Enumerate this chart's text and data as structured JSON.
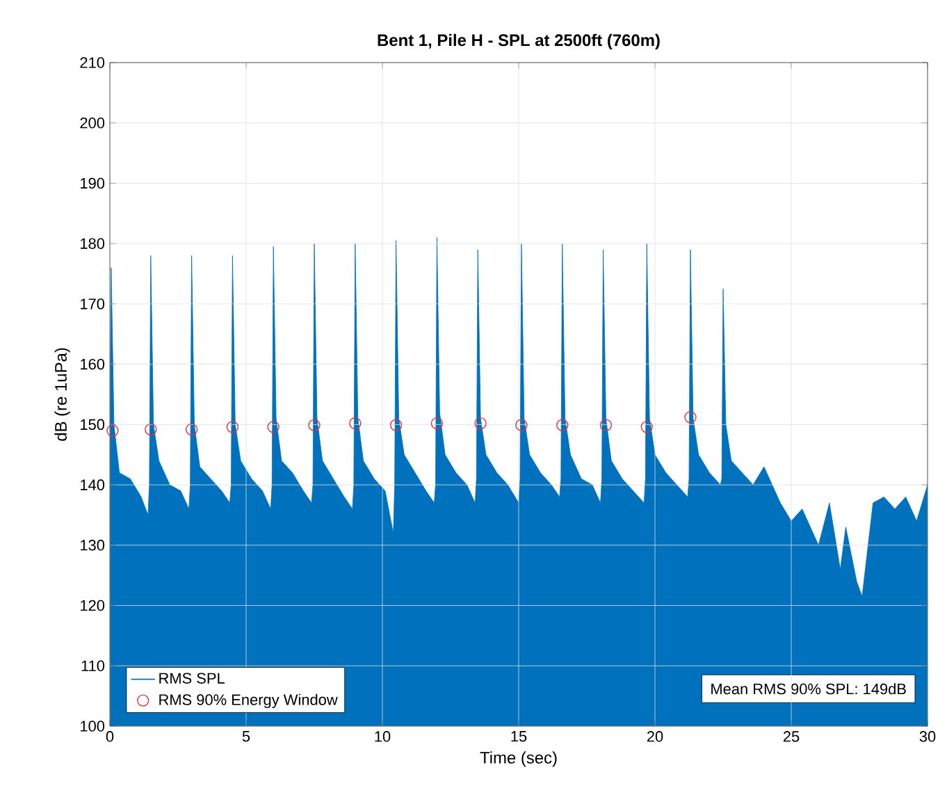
{
  "chart_data": {
    "type": "area",
    "title": "Bent 1, Pile H - SPL at 2500ft (760m)",
    "xlabel": "Time (sec)",
    "ylabel": "dB (re 1uPa)",
    "xlim": [
      0,
      30
    ],
    "ylim": [
      100,
      210
    ],
    "xticks": [
      0,
      5,
      10,
      15,
      20,
      25,
      30
    ],
    "yticks": [
      100,
      110,
      120,
      130,
      140,
      150,
      160,
      170,
      180,
      190,
      200,
      210
    ],
    "grid": true,
    "legend": "bottom left",
    "annotations": [
      "Mean RMS 90% SPL: 149dB"
    ],
    "series": [
      {
        "name": "RMS SPL",
        "color": "#0072bd",
        "x": [
          0,
          0.05,
          0.15,
          0.35,
          0.75,
          1.15,
          1.4,
          1.45,
          1.5,
          1.6,
          1.8,
          2.2,
          2.6,
          2.9,
          2.95,
          3.0,
          3.1,
          3.3,
          3.7,
          4.1,
          4.4,
          4.45,
          4.5,
          4.6,
          4.8,
          5.2,
          5.6,
          5.9,
          5.95,
          6.0,
          6.1,
          6.3,
          6.7,
          7.1,
          7.4,
          7.45,
          7.5,
          7.6,
          7.8,
          8.2,
          8.6,
          8.9,
          8.95,
          9.0,
          9.1,
          9.3,
          9.7,
          10.1,
          10.4,
          10.45,
          10.5,
          10.6,
          10.8,
          11.2,
          11.6,
          11.9,
          11.95,
          12.0,
          12.1,
          12.3,
          12.7,
          13.1,
          13.4,
          13.45,
          13.5,
          13.6,
          13.8,
          14.2,
          14.6,
          15.0,
          15.05,
          15.1,
          15.2,
          15.4,
          15.8,
          16.2,
          16.5,
          16.55,
          16.6,
          16.7,
          16.9,
          17.3,
          17.7,
          18.0,
          18.05,
          18.1,
          18.2,
          18.4,
          18.8,
          19.2,
          19.6,
          19.65,
          19.7,
          19.8,
          20.0,
          20.4,
          20.8,
          21.2,
          21.25,
          21.3,
          21.4,
          21.6,
          22.0,
          22.4,
          22.45,
          22.5,
          22.6,
          22.8,
          23.2,
          23.6,
          24.0,
          24.3,
          24.6,
          25.0,
          25.4,
          25.8,
          26.0,
          26.4,
          26.8,
          27.0,
          27.4,
          27.6,
          28.0,
          28.4,
          28.8,
          29.2,
          29.6,
          30.0
        ],
        "values": [
          150,
          176,
          150,
          142,
          141,
          138,
          135,
          140,
          178,
          150,
          144,
          140,
          139,
          136,
          140,
          178,
          150,
          143,
          141,
          139,
          137,
          140,
          178,
          150,
          144,
          141,
          139,
          136,
          140,
          179.5,
          151,
          144,
          142,
          139,
          137,
          140,
          180,
          151,
          144,
          141,
          138,
          136,
          140,
          180,
          151,
          144,
          141,
          139,
          132,
          140,
          180.5,
          151,
          145,
          142,
          139,
          137,
          140,
          181,
          152,
          145,
          142,
          140,
          137,
          141,
          179,
          151,
          145,
          142,
          140,
          137,
          141,
          180,
          151,
          145,
          142,
          140,
          138,
          141,
          180,
          151,
          145,
          141,
          140,
          137,
          141,
          179,
          151,
          144,
          141,
          139,
          137,
          141,
          180,
          151,
          145,
          142,
          140,
          138,
          141,
          179,
          151,
          145,
          142,
          140,
          141,
          172.5,
          150,
          144,
          142,
          140,
          143,
          140,
          137,
          134,
          136,
          132,
          130,
          137,
          126,
          133,
          124,
          121.5,
          137,
          138,
          136,
          138,
          134,
          140
        ]
      },
      {
        "name": "RMS 90% Energy Window",
        "type": "scatter",
        "marker": "circle",
        "color": "#e0303c",
        "x": [
          0.1,
          1.5,
          3.0,
          4.5,
          6.0,
          7.5,
          9.0,
          10.5,
          12.0,
          13.6,
          15.1,
          16.6,
          18.2,
          19.7,
          21.3
        ],
        "values": [
          149,
          149.2,
          149.2,
          149.6,
          149.6,
          149.9,
          150.2,
          149.9,
          150.2,
          150.2,
          149.9,
          149.9,
          149.9,
          149.6,
          151.2
        ]
      }
    ]
  }
}
